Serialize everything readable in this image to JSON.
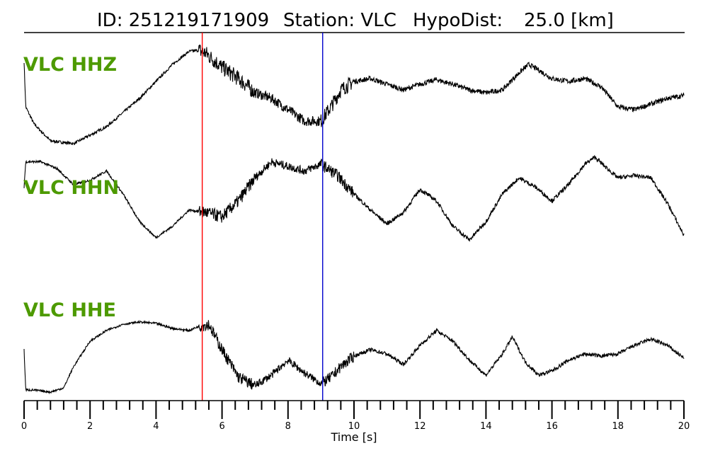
{
  "header": {
    "id_label": "ID: 251219171909",
    "station_label": "Station: VLC",
    "hypodist_label": "HypoDist:",
    "hypodist_value": "25.0 [km]"
  },
  "colors": {
    "trace": "#000000",
    "label": "#4d9a00",
    "p_pick": "#ff0000",
    "s_pick": "#0000cc"
  },
  "chart_data": {
    "type": "line",
    "xlabel": "Time [s]",
    "xlim": [
      0,
      20
    ],
    "x_major_ticks": [
      0,
      2,
      4,
      6,
      8,
      10,
      12,
      14,
      16,
      18,
      20
    ],
    "x_minor_step": 0.4,
    "markers": [
      {
        "color": "red",
        "x": 5.4
      },
      {
        "color": "blue",
        "x": 9.05
      }
    ],
    "series": [
      {
        "name": "VLC HHZ",
        "x": [
          0,
          0.05,
          0.3,
          0.8,
          1.5,
          2.0,
          2.5,
          3.0,
          3.5,
          4.0,
          4.5,
          5.0,
          5.3,
          5.5,
          6.0,
          6.5,
          7.0,
          7.5,
          8.0,
          8.5,
          9.0,
          9.3,
          9.6,
          10.0,
          10.5,
          11.0,
          11.5,
          12.0,
          12.5,
          13.0,
          13.5,
          14.0,
          14.5,
          15.0,
          15.3,
          15.6,
          16.0,
          16.5,
          17.0,
          17.5,
          18.0,
          18.5,
          19.0,
          19.5,
          20.0
        ],
        "y": [
          0.6,
          -0.2,
          -0.5,
          -0.8,
          -0.85,
          -0.7,
          -0.55,
          -0.3,
          -0.05,
          0.25,
          0.55,
          0.78,
          0.8,
          0.75,
          0.5,
          0.3,
          0.05,
          -0.05,
          -0.25,
          -0.45,
          -0.45,
          -0.2,
          0.1,
          0.25,
          0.3,
          0.2,
          0.1,
          0.2,
          0.28,
          0.2,
          0.1,
          0.05,
          0.1,
          0.4,
          0.55,
          0.45,
          0.3,
          0.25,
          0.3,
          0.15,
          -0.2,
          -0.25,
          -0.15,
          -0.05,
          0.0
        ]
      },
      {
        "name": "VLC HHN",
        "x": [
          0,
          0.05,
          0.5,
          1.0,
          1.5,
          2.0,
          2.5,
          3.0,
          3.5,
          4.0,
          4.5,
          5.0,
          5.5,
          6.0,
          6.5,
          7.0,
          7.5,
          8.0,
          8.5,
          9.0,
          9.5,
          10.0,
          10.5,
          11.0,
          11.5,
          12.0,
          12.5,
          13.0,
          13.5,
          14.0,
          14.5,
          15.0,
          15.5,
          16.0,
          16.5,
          17.0,
          17.3,
          17.6,
          18.0,
          18.5,
          19.0,
          19.5,
          20.0
        ],
        "y": [
          0.35,
          0.9,
          0.9,
          0.75,
          0.4,
          0.5,
          0.7,
          0.2,
          -0.4,
          -0.75,
          -0.5,
          -0.15,
          -0.2,
          -0.3,
          0.05,
          0.55,
          0.9,
          0.8,
          0.7,
          0.85,
          0.6,
          0.2,
          -0.15,
          -0.45,
          -0.2,
          0.3,
          0.05,
          -0.5,
          -0.8,
          -0.4,
          0.2,
          0.55,
          0.35,
          0.05,
          0.4,
          0.85,
          1.0,
          0.8,
          0.55,
          0.6,
          0.55,
          0.0,
          -0.7
        ]
      },
      {
        "name": "VLC HHE",
        "x": [
          0,
          0.05,
          0.3,
          0.8,
          1.2,
          1.5,
          2.0,
          2.5,
          3.0,
          3.5,
          4.0,
          4.5,
          5.0,
          5.3,
          5.6,
          6.0,
          6.5,
          7.0,
          7.5,
          8.0,
          8.5,
          9.0,
          9.3,
          9.6,
          10.0,
          10.5,
          11.0,
          11.5,
          12.0,
          12.5,
          13.0,
          13.5,
          14.0,
          14.5,
          14.8,
          15.2,
          15.6,
          16.0,
          16.5,
          17.0,
          17.5,
          18.0,
          18.5,
          19.0,
          19.5,
          20.0
        ],
        "y": [
          0.1,
          -0.85,
          -0.85,
          -0.9,
          -0.8,
          -0.3,
          0.3,
          0.55,
          0.7,
          0.75,
          0.72,
          0.6,
          0.55,
          0.65,
          0.7,
          0.1,
          -0.55,
          -0.75,
          -0.5,
          -0.15,
          -0.45,
          -0.7,
          -0.55,
          -0.3,
          -0.05,
          0.1,
          0.0,
          -0.25,
          0.2,
          0.55,
          0.3,
          -0.15,
          -0.5,
          0.0,
          0.4,
          -0.2,
          -0.5,
          -0.4,
          -0.15,
          0.0,
          -0.05,
          0.0,
          0.2,
          0.35,
          0.2,
          -0.1
        ]
      }
    ]
  }
}
